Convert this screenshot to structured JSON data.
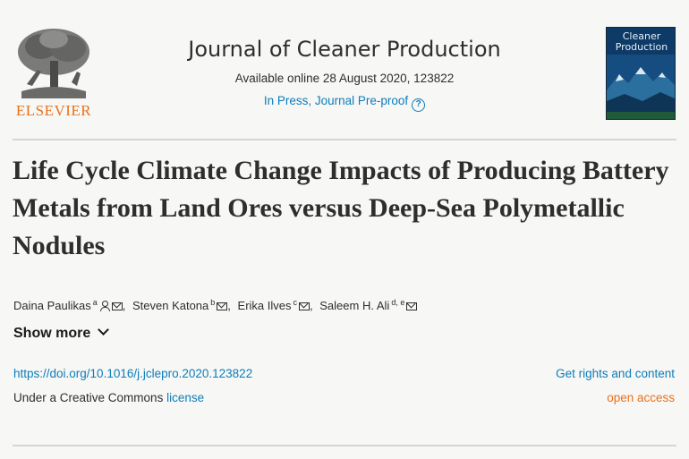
{
  "publisher": {
    "logo_text": "ELSEVIER",
    "logo_color": "#e9711c"
  },
  "journal": {
    "title": "Journal of Cleaner Production",
    "availability": "Available online 28 August 2020, 123822",
    "status": "In Press, Journal Pre-proof",
    "cover_title_line1": "Cleaner",
    "cover_title_line2": "Production"
  },
  "article": {
    "title": "Life Cycle Climate Change Impacts of Producing Battery Metals from Land Ores versus Deep-Sea Polymetallic Nodules",
    "authors": [
      {
        "name": "Daina Paulikas",
        "affiliation": "a"
      },
      {
        "name": "Steven Katona",
        "affiliation": "b"
      },
      {
        "name": "Erika Ilves",
        "affiliation": "c"
      },
      {
        "name": "Saleem H. Ali",
        "affiliation": "d, e"
      }
    ],
    "show_more_label": "Show more",
    "doi": "https://doi.org/10.1016/j.jclepro.2020.123822",
    "license_prefix": "Under a Creative Commons ",
    "license_link": "license",
    "rights_label": "Get rights and content",
    "access_label": "open access"
  },
  "colors": {
    "link": "#0c7dbb",
    "accent": "#e9711c",
    "text": "#2e2e2e"
  },
  "icons": [
    "elsevier-tree-logo",
    "help-icon",
    "person-icon",
    "envelope-icon",
    "chevron-down-icon"
  ]
}
